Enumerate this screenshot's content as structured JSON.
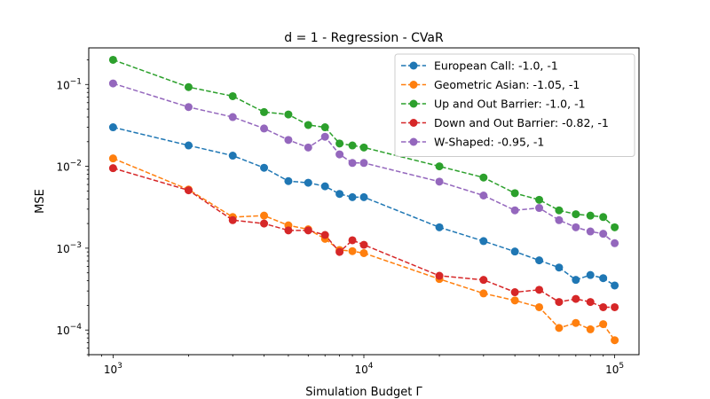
{
  "chart_data": {
    "type": "line",
    "title": "d = 1 - Regression - CVaR",
    "xlabel": "Simulation Budget Γ",
    "ylabel": "MSE",
    "xscale": "log",
    "yscale": "log",
    "xlim": [
      800,
      125000
    ],
    "ylim": [
      5e-05,
      0.28
    ],
    "xticks": [
      {
        "value": 1000,
        "base": "10",
        "exp": "3"
      },
      {
        "value": 10000,
        "base": "10",
        "exp": "4"
      },
      {
        "value": 100000,
        "base": "10",
        "exp": "5"
      }
    ],
    "yticks": [
      {
        "value": 0.0001,
        "base": "10",
        "exp": "−4"
      },
      {
        "value": 0.001,
        "base": "10",
        "exp": "−3"
      },
      {
        "value": 0.01,
        "base": "10",
        "exp": "−2"
      },
      {
        "value": 0.1,
        "base": "10",
        "exp": "−1"
      }
    ],
    "grid": false,
    "legend_position": "top-right",
    "x": [
      1000,
      2000,
      3000,
      4000,
      5000,
      6000,
      7000,
      8000,
      9000,
      10000,
      20000,
      30000,
      40000,
      50000,
      60000,
      70000,
      80000,
      90000,
      100000
    ],
    "series": [
      {
        "name": "European Call: -1.0, -1",
        "color": "#1f77b4",
        "values": [
          0.03,
          0.018,
          0.0135,
          0.0096,
          0.0066,
          0.0063,
          0.0057,
          0.0046,
          0.0042,
          0.0042,
          0.0018,
          0.00122,
          0.00091,
          0.00071,
          0.00058,
          0.00041,
          0.00047,
          0.00043,
          0.00035
        ]
      },
      {
        "name": "Geometric Asian: -1.05, -1",
        "color": "#ff7f0e",
        "values": [
          0.0125,
          0.0052,
          0.0024,
          0.0025,
          0.0019,
          0.0017,
          0.0013,
          0.00095,
          0.00092,
          0.00087,
          0.00042,
          0.00028,
          0.00023,
          0.00019,
          0.000106,
          0.000122,
          0.000102,
          0.000118,
          7.5e-05
        ]
      },
      {
        "name": "Up and Out Barrier: -1.0, -1",
        "color": "#2ca02c",
        "values": [
          0.2,
          0.093,
          0.072,
          0.046,
          0.043,
          0.032,
          0.03,
          0.019,
          0.018,
          0.017,
          0.01,
          0.0073,
          0.0047,
          0.0039,
          0.0029,
          0.0026,
          0.0025,
          0.0024,
          0.0018
        ]
      },
      {
        "name": "Down and Out Barrier: -0.82, -1",
        "color": "#d62728",
        "values": [
          0.0095,
          0.0051,
          0.0022,
          0.002,
          0.00165,
          0.00165,
          0.00145,
          0.0009,
          0.00125,
          0.0011,
          0.00046,
          0.00041,
          0.00029,
          0.00031,
          0.00022,
          0.00024,
          0.00022,
          0.00019,
          0.00019
        ]
      },
      {
        "name": "W-Shaped: -0.95, -1",
        "color": "#9467bd",
        "values": [
          0.103,
          0.053,
          0.04,
          0.029,
          0.021,
          0.017,
          0.023,
          0.014,
          0.011,
          0.011,
          0.0065,
          0.0044,
          0.0029,
          0.0031,
          0.0022,
          0.0018,
          0.0016,
          0.0015,
          0.00115
        ]
      }
    ]
  }
}
